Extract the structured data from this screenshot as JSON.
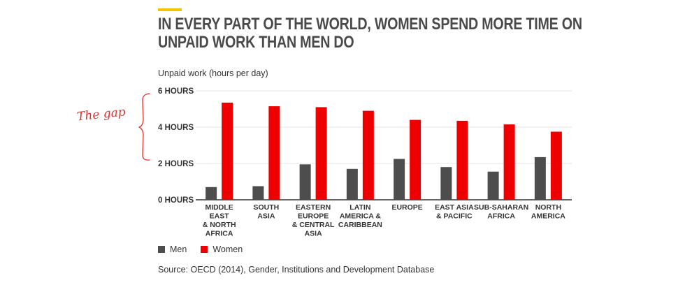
{
  "title_lines": [
    "IN EVERY PART OF THE WORLD, WOMEN SPEND MORE TIME ON",
    "UNPAID WORK THAN MEN DO"
  ],
  "annotation": "The gap",
  "source": "Source: OECD (2014), Gender, Institutions and Development Database",
  "colors": {
    "accent": "#f5c400",
    "men": "#4d4d4d",
    "women": "#ee0000",
    "annotation": "#e03030",
    "grid": "#e6e6e6"
  },
  "chart_data": {
    "type": "bar",
    "ylabel": "Unpaid work (hours per day)",
    "ylim": [
      0,
      6
    ],
    "yticks": [
      0,
      2,
      4,
      6
    ],
    "ytick_labels": [
      "0 HOURS",
      "2 HOURS",
      "4 HOURS",
      "6 HOURS"
    ],
    "grid": true,
    "legend_position": "bottom-left",
    "categories": [
      [
        "MIDDLE",
        "EAST",
        "& NORTH",
        "AFRICA"
      ],
      [
        "SOUTH",
        "ASIA"
      ],
      [
        "EASTERN",
        "EUROPE",
        "& CENTRAL",
        "ASIA"
      ],
      [
        "LATIN",
        "AMERICA &",
        "CARIBBEAN"
      ],
      [
        "EUROPE"
      ],
      [
        "EAST ASIA",
        "& PACIFIC"
      ],
      [
        "SUB-SAHARAN",
        "AFRICA"
      ],
      [
        "NORTH",
        "AMERICA"
      ]
    ],
    "series": [
      {
        "name": "Men",
        "color": "#4d4d4d",
        "values": [
          0.7,
          0.75,
          1.95,
          1.7,
          2.25,
          1.8,
          1.55,
          2.35
        ]
      },
      {
        "name": "Women",
        "color": "#ee0000",
        "values": [
          5.35,
          5.15,
          5.1,
          4.9,
          4.4,
          4.35,
          4.15,
          3.75
        ]
      }
    ]
  }
}
